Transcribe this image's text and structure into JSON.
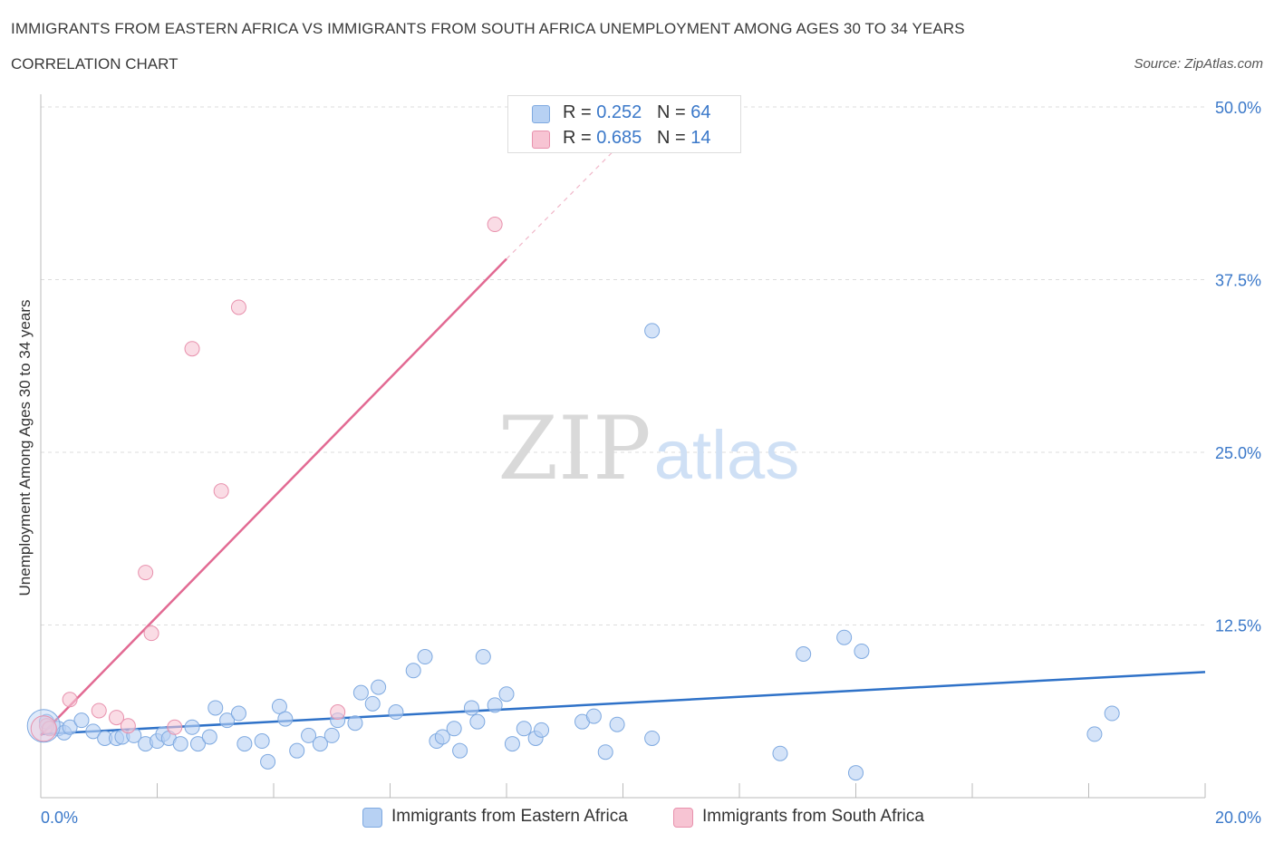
{
  "header": {
    "title": "IMMIGRANTS FROM EASTERN AFRICA VS IMMIGRANTS FROM SOUTH AFRICA UNEMPLOYMENT AMONG AGES 30 TO 34 YEARS",
    "subtitle": "CORRELATION CHART",
    "source": "Source: ZipAtlas.com"
  },
  "watermark": {
    "zip": "ZIP",
    "atlas": "atlas"
  },
  "legend": {
    "rows": [
      {
        "r_label": "R = ",
        "r_value": "0.252",
        "n_label": "N = ",
        "n_value": "64",
        "color": "#b7d1f3"
      },
      {
        "r_label": "R = ",
        "r_value": "0.685",
        "n_label": "N = ",
        "n_value": "14",
        "color": "#f7c4d3"
      }
    ]
  },
  "colors": {
    "blue_fill": "#b7d1f3",
    "blue_stroke": "#7ea9e0",
    "blue_line": "#2f72c8",
    "pink_fill": "#f7c4d3",
    "pink_stroke": "#e891ad",
    "pink_line": "#e26a93",
    "tick_label": "#3a78c9",
    "grid": "#dddddd"
  },
  "chart_data": {
    "type": "scatter",
    "xlabel": "",
    "ylabel": "Unemployment Among Ages 30 to 34 years",
    "xlim": [
      0,
      20
    ],
    "ylim": [
      0,
      50
    ],
    "x_tick_labels": [
      "0.0%",
      "20.0%"
    ],
    "y_ticks": [
      12.5,
      25.0,
      37.5,
      50.0
    ],
    "y_tick_labels": [
      "12.5%",
      "25.0%",
      "37.5%",
      "50.0%"
    ],
    "grid": true,
    "legend_position": "top-center",
    "series": [
      {
        "name": "Immigrants from Eastern Africa",
        "points": [
          [
            0.1,
            5.5
          ],
          [
            0.3,
            5.0
          ],
          [
            0.4,
            4.7
          ],
          [
            0.5,
            5.1
          ],
          [
            0.7,
            5.6
          ],
          [
            0.9,
            4.8
          ],
          [
            1.1,
            4.3
          ],
          [
            1.3,
            4.3
          ],
          [
            1.4,
            4.4
          ],
          [
            1.6,
            4.5
          ],
          [
            1.8,
            3.9
          ],
          [
            2.0,
            4.1
          ],
          [
            2.1,
            4.6
          ],
          [
            2.2,
            4.3
          ],
          [
            2.4,
            3.9
          ],
          [
            2.6,
            5.1
          ],
          [
            2.7,
            3.9
          ],
          [
            2.9,
            4.4
          ],
          [
            3.0,
            6.5
          ],
          [
            3.2,
            5.6
          ],
          [
            3.4,
            6.1
          ],
          [
            3.5,
            3.9
          ],
          [
            3.8,
            4.1
          ],
          [
            3.9,
            2.6
          ],
          [
            4.1,
            6.6
          ],
          [
            4.2,
            5.7
          ],
          [
            4.4,
            3.4
          ],
          [
            4.6,
            4.5
          ],
          [
            4.8,
            3.9
          ],
          [
            5.0,
            4.5
          ],
          [
            5.1,
            5.6
          ],
          [
            5.4,
            5.4
          ],
          [
            5.5,
            7.6
          ],
          [
            5.7,
            6.8
          ],
          [
            5.8,
            8.0
          ],
          [
            6.1,
            6.2
          ],
          [
            6.4,
            9.2
          ],
          [
            6.6,
            10.2
          ],
          [
            6.8,
            4.1
          ],
          [
            6.9,
            4.4
          ],
          [
            7.1,
            5.0
          ],
          [
            7.2,
            3.4
          ],
          [
            7.4,
            6.5
          ],
          [
            7.5,
            5.5
          ],
          [
            7.6,
            10.2
          ],
          [
            7.8,
            6.7
          ],
          [
            8.0,
            7.5
          ],
          [
            8.1,
            3.9
          ],
          [
            8.3,
            5.0
          ],
          [
            8.5,
            4.3
          ],
          [
            8.6,
            4.9
          ],
          [
            9.3,
            5.5
          ],
          [
            9.5,
            5.9
          ],
          [
            9.7,
            3.3
          ],
          [
            9.9,
            5.3
          ],
          [
            10.5,
            4.3
          ],
          [
            10.5,
            33.8
          ],
          [
            12.7,
            3.2
          ],
          [
            13.1,
            10.4
          ],
          [
            13.8,
            11.6
          ],
          [
            14.0,
            1.8
          ],
          [
            14.1,
            10.6
          ],
          [
            18.1,
            4.6
          ],
          [
            18.4,
            6.1
          ]
        ],
        "trend": {
          "x": [
            0,
            20
          ],
          "y": [
            4.6,
            9.1
          ]
        }
      },
      {
        "name": "Immigrants from South Africa",
        "points": [
          [
            0.1,
            5.2
          ],
          [
            0.5,
            7.1
          ],
          [
            1.0,
            6.3
          ],
          [
            1.3,
            5.8
          ],
          [
            1.5,
            5.2
          ],
          [
            1.8,
            16.3
          ],
          [
            1.9,
            11.9
          ],
          [
            2.3,
            5.1
          ],
          [
            2.6,
            32.5
          ],
          [
            3.1,
            22.2
          ],
          [
            3.4,
            35.5
          ],
          [
            5.1,
            6.2
          ],
          [
            7.8,
            41.5
          ],
          [
            0.15,
            5.0
          ]
        ],
        "trend": {
          "x": [
            0,
            8.0
          ],
          "y": [
            4.5,
            39.0
          ]
        },
        "trend_extension": {
          "x": [
            8.0,
            10.0
          ],
          "y": [
            39.0,
            47.5
          ]
        }
      }
    ]
  }
}
